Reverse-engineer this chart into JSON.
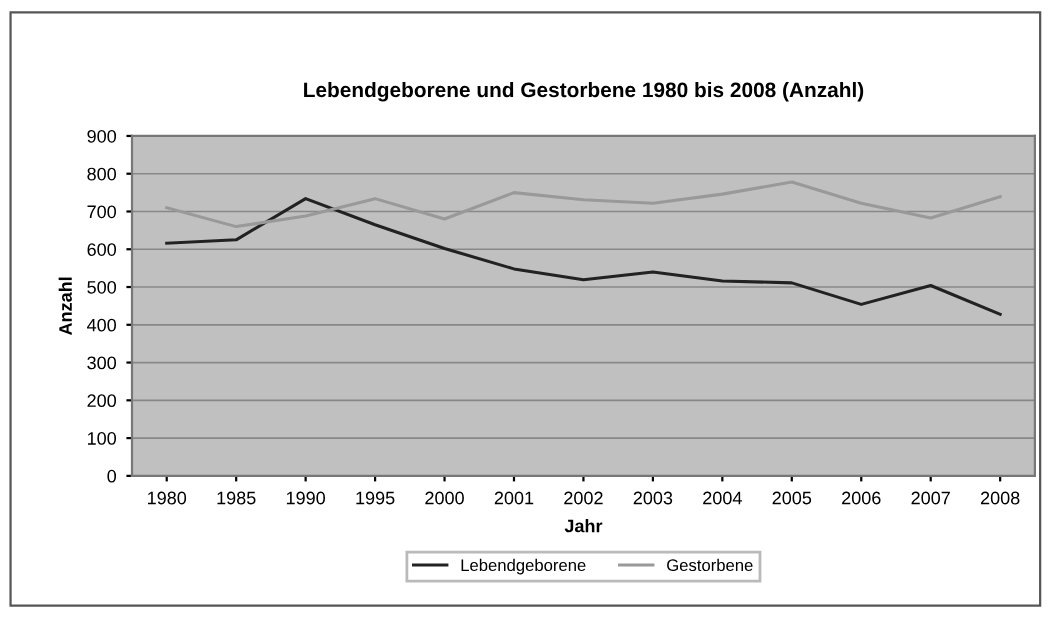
{
  "chart_data": {
    "type": "line",
    "title": "Lebendgeborene und Gestorbene 1980 bis 2008 (Anzahl)",
    "xlabel": "Jahr",
    "ylabel": "Anzahl",
    "categories": [
      "1980",
      "1985",
      "1990",
      "1995",
      "2000",
      "2001",
      "2002",
      "2003",
      "2004",
      "2005",
      "2006",
      "2007",
      "2008"
    ],
    "series": [
      {
        "name": "Lebendgeborene",
        "color": "#222222",
        "values": [
          616,
          625,
          734,
          665,
          602,
          548,
          519,
          540,
          516,
          511,
          454,
          504,
          428
        ]
      },
      {
        "name": "Gestorbene",
        "color": "#999999",
        "values": [
          710,
          660,
          688,
          734,
          680,
          750,
          731,
          722,
          746,
          778,
          722,
          683,
          739
        ]
      }
    ],
    "ylim": [
      0,
      900
    ],
    "yticks": [
      0,
      100,
      200,
      300,
      400,
      500,
      600,
      700,
      800,
      900
    ],
    "grid": "y",
    "legend": "bottom",
    "marker": "none",
    "line_style": "solid"
  }
}
